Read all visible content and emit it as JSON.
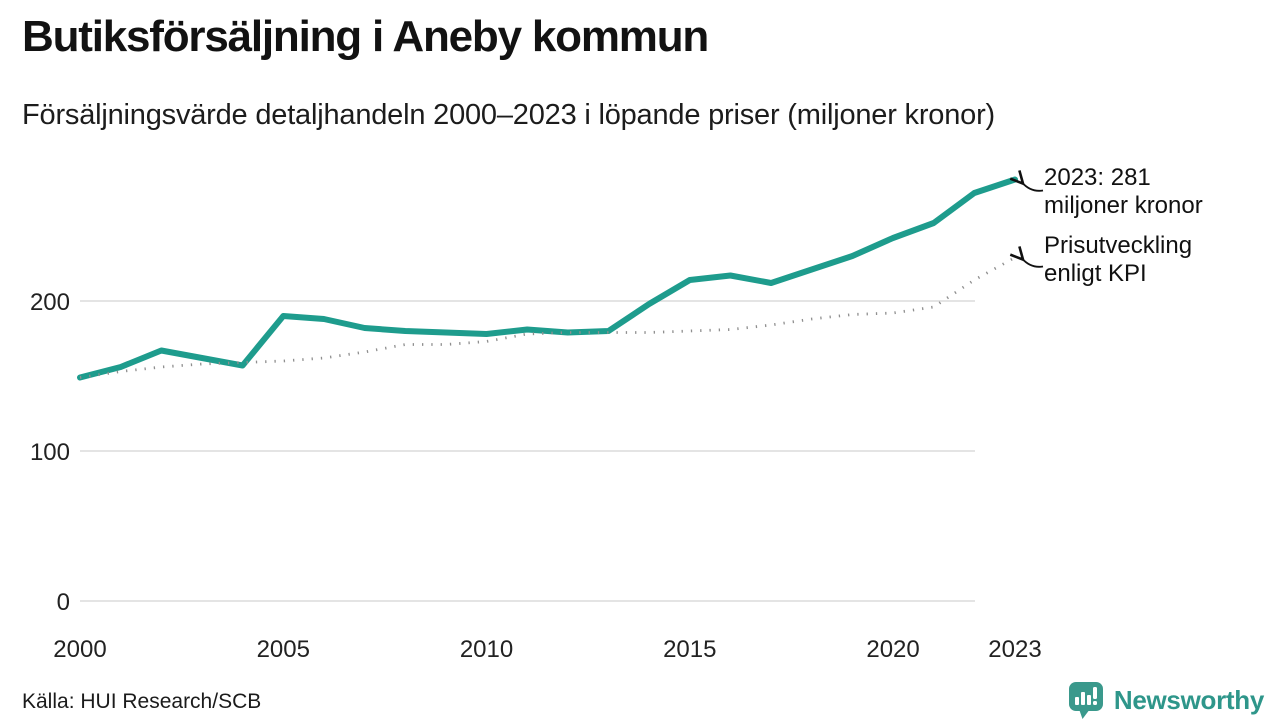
{
  "header": {
    "title": "Butiksförsäljning i Aneby kommun",
    "subtitle": "Försäljningsvärde detaljhandeln 2000–2023 i löpande priser (miljoner kronor)"
  },
  "chart_data": {
    "type": "line",
    "title": "Butiksförsäljning i Aneby kommun",
    "subtitle": "Försäljningsvärde detaljhandeln 2000–2023 i löpande priser (miljoner kronor)",
    "x": [
      2000,
      2001,
      2002,
      2003,
      2004,
      2005,
      2006,
      2007,
      2008,
      2009,
      2010,
      2011,
      2012,
      2013,
      2014,
      2015,
      2016,
      2017,
      2018,
      2019,
      2020,
      2021,
      2022,
      2023
    ],
    "series": [
      {
        "id": "sales",
        "name": "2023: 281 miljoner kronor",
        "color": "#1e9c8d",
        "style": "solid",
        "values": [
          149,
          156,
          167,
          162,
          157,
          190,
          188,
          182,
          180,
          179,
          178,
          181,
          179,
          180,
          198,
          214,
          217,
          212,
          221,
          230,
          242,
          252,
          272,
          281
        ]
      },
      {
        "id": "kpi",
        "name": "Prisutveckling enligt KPI",
        "color": "#8f8f8f",
        "style": "dotted",
        "values": [
          149,
          153,
          156,
          158,
          159,
          160,
          162,
          166,
          171,
          171,
          173,
          178,
          179,
          179,
          179,
          180,
          181,
          184,
          188,
          191,
          192,
          196,
          214,
          229
        ]
      }
    ],
    "annotations": [
      {
        "line1": "2023: 281",
        "line2": "miljoner kronor"
      },
      {
        "line1": "Prisutveckling",
        "line2": "enligt KPI"
      }
    ],
    "yticks": [
      0,
      100,
      200
    ],
    "xticks": [
      2000,
      2005,
      2010,
      2015,
      2020,
      2023
    ],
    "ylim": [
      0,
      290
    ],
    "grid": "horizontal",
    "legend_position": "annotated-right"
  },
  "footer": {
    "source": "Källa: HUI Research/SCB",
    "brand": "Newsworthy"
  },
  "colors": {
    "accent": "#1e9c8d",
    "kpi_dotted": "#8f8f8f",
    "grid": "#e4e4e4",
    "brand_teal": "#3a998c",
    "text": "#111111"
  }
}
